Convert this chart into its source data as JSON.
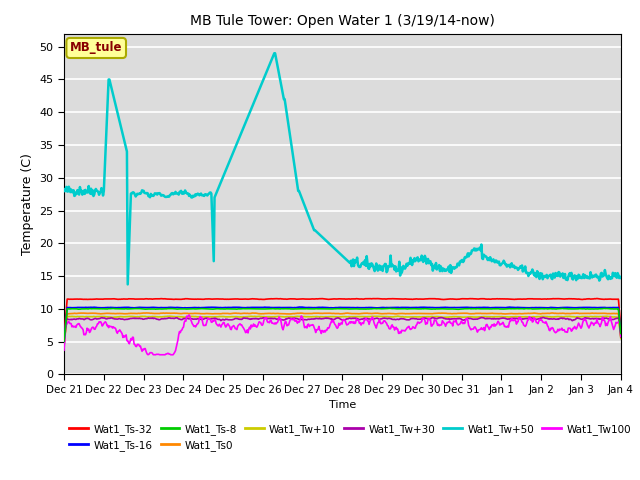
{
  "title": "MB Tule Tower: Open Water 1 (3/19/14-now)",
  "ylabel": "Temperature (C)",
  "xlabel": "Time",
  "ylim": [
    0,
    52
  ],
  "yticks": [
    0,
    5,
    10,
    15,
    20,
    25,
    30,
    35,
    40,
    45,
    50
  ],
  "xtick_labels": [
    "Dec 21",
    "Dec 22",
    "Dec 23",
    "Dec 24",
    "Dec 25",
    "Dec 26",
    "Dec 27",
    "Dec 28",
    "Dec 29",
    "Dec 30",
    "Dec 31",
    "Jan 1",
    "Jan 2",
    "Jan 3",
    "Jan 4"
  ],
  "bg_color": "#dcdcdc",
  "fig_bg_color": "#ffffff",
  "legend_label_box_color": "#ffff99",
  "legend_label_box_edge": "#aaaa00",
  "legend_label_text": "MB_tule",
  "legend_label_text_color": "#880000",
  "series": {
    "Wat1_Ts-32": {
      "color": "#ff0000",
      "lw": 1.2
    },
    "Wat1_Ts-16": {
      "color": "#0000ff",
      "lw": 1.2
    },
    "Wat1_Ts-8": {
      "color": "#00cc00",
      "lw": 1.2
    },
    "Wat1_Ts0": {
      "color": "#ff8800",
      "lw": 1.2
    },
    "Wat1_Tw+10": {
      "color": "#cccc00",
      "lw": 1.2
    },
    "Wat1_Tw+30": {
      "color": "#aa00aa",
      "lw": 1.2
    },
    "Wat1_Tw+50": {
      "color": "#00cccc",
      "lw": 1.8
    },
    "Wat1_Tw100": {
      "color": "#ff00ff",
      "lw": 1.2
    }
  }
}
